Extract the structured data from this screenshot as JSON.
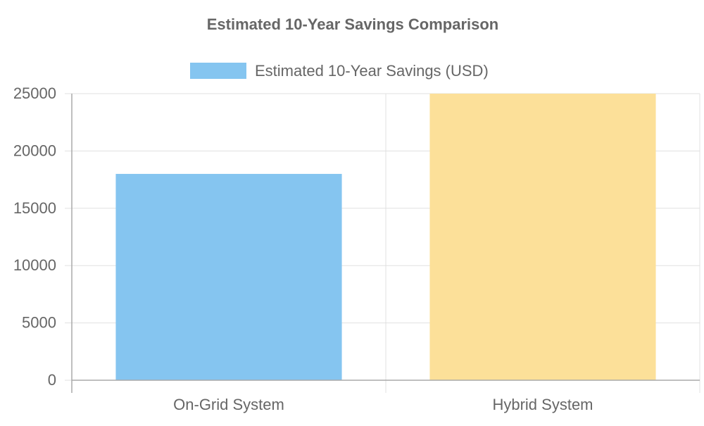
{
  "chart_data": {
    "type": "bar",
    "title": "Estimated 10-Year Savings Comparison",
    "xlabel": "",
    "ylabel": "",
    "categories": [
      "On-Grid System",
      "Hybrid System"
    ],
    "series": [
      {
        "name": "Estimated 10-Year Savings (USD)",
        "values": [
          18000,
          25000
        ],
        "colors": [
          "#85c5f0",
          "#fce099"
        ],
        "legend_color": "#85c5f0"
      }
    ],
    "ylim": [
      0,
      25000
    ],
    "yticks": [
      0,
      5000,
      10000,
      15000,
      20000,
      25000
    ],
    "grid": true,
    "legend_position": "top"
  },
  "colors": {
    "text": "#666666",
    "grid": "#e0e0e0",
    "axis": "#aaaaaa"
  }
}
